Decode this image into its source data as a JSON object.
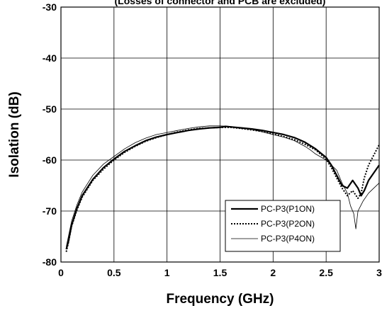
{
  "chart_data": {
    "type": "line",
    "title": "",
    "subtitle": "(Losses of connector and PCB are excluded)",
    "xlabel": "Frequency (GHz)",
    "ylabel": "Isolation (dB)",
    "xlim": [
      0,
      3
    ],
    "ylim": [
      -80,
      -30
    ],
    "x_ticks": [
      0,
      0.5,
      1,
      1.5,
      2,
      2.5,
      3
    ],
    "x_tick_labels": [
      "0",
      "0.5",
      "1",
      "1.5",
      "2",
      "2.5",
      "3"
    ],
    "y_ticks": [
      -80,
      -70,
      -60,
      -50,
      -40,
      -30
    ],
    "y_tick_labels": [
      "-80",
      "-70",
      "-60",
      "-50",
      "-40",
      "-30"
    ],
    "grid": true,
    "legend_position": "bottom-right",
    "series": [
      {
        "name": "PC-P3(P1ON)",
        "style": "solid-thick",
        "x": [
          0.05,
          0.07,
          0.1,
          0.15,
          0.2,
          0.3,
          0.4,
          0.5,
          0.6,
          0.7,
          0.8,
          0.9,
          1.0,
          1.1,
          1.2,
          1.3,
          1.4,
          1.5,
          1.55,
          1.6,
          1.7,
          1.8,
          1.9,
          2.0,
          2.1,
          2.2,
          2.3,
          2.4,
          2.5,
          2.55,
          2.6,
          2.65,
          2.7,
          2.75,
          2.8,
          2.83,
          2.86,
          2.9,
          2.95,
          3.0
        ],
        "y": [
          -77.5,
          -76.0,
          -72.8,
          -69.5,
          -67.0,
          -63.8,
          -61.5,
          -59.8,
          -58.3,
          -57.2,
          -56.2,
          -55.5,
          -55.0,
          -54.6,
          -54.2,
          -53.9,
          -53.7,
          -53.6,
          -53.4,
          -53.5,
          -53.7,
          -53.9,
          -54.2,
          -54.6,
          -55.0,
          -55.6,
          -56.5,
          -57.8,
          -59.5,
          -61.0,
          -63.0,
          -65.0,
          -65.5,
          -64.0,
          -65.5,
          -67.0,
          -66.0,
          -64.0,
          -62.5,
          -61.0
        ]
      },
      {
        "name": "PC-P3(P2ON)",
        "style": "dotted",
        "x": [
          0.05,
          0.07,
          0.1,
          0.15,
          0.2,
          0.3,
          0.4,
          0.5,
          0.6,
          0.7,
          0.8,
          0.9,
          1.0,
          1.1,
          1.2,
          1.3,
          1.4,
          1.5,
          1.6,
          1.7,
          1.8,
          1.9,
          2.0,
          2.1,
          2.2,
          2.3,
          2.4,
          2.5,
          2.55,
          2.6,
          2.65,
          2.7,
          2.75,
          2.8,
          2.83,
          2.86,
          2.9,
          2.95,
          3.0
        ],
        "y": [
          -78.0,
          -76.2,
          -73.0,
          -69.8,
          -67.3,
          -64.0,
          -61.8,
          -60.0,
          -58.5,
          -57.3,
          -56.3,
          -55.6,
          -55.0,
          -54.5,
          -54.1,
          -53.8,
          -53.7,
          -53.6,
          -53.6,
          -53.8,
          -54.1,
          -54.4,
          -54.9,
          -55.4,
          -56.0,
          -56.9,
          -58.0,
          -59.8,
          -61.5,
          -63.5,
          -65.5,
          -67.0,
          -66.0,
          -67.5,
          -66.5,
          -63.5,
          -61.0,
          -59.0,
          -57.0
        ]
      },
      {
        "name": "PC-P3(P4ON)",
        "style": "thin",
        "x": [
          0.05,
          0.07,
          0.1,
          0.15,
          0.2,
          0.3,
          0.4,
          0.5,
          0.6,
          0.7,
          0.8,
          0.9,
          1.0,
          1.1,
          1.2,
          1.3,
          1.4,
          1.5,
          1.6,
          1.7,
          1.8,
          1.9,
          2.0,
          2.1,
          2.2,
          2.3,
          2.35,
          2.4,
          2.5,
          2.6,
          2.65,
          2.7,
          2.73,
          2.76,
          2.78,
          2.8,
          2.85,
          2.9,
          2.95,
          3.0
        ],
        "y": [
          -77.0,
          -75.0,
          -72.0,
          -68.8,
          -66.3,
          -63.0,
          -60.8,
          -59.3,
          -57.8,
          -56.6,
          -55.7,
          -55.0,
          -54.6,
          -54.2,
          -53.8,
          -53.5,
          -53.3,
          -53.3,
          -53.4,
          -53.8,
          -54.0,
          -54.5,
          -55.0,
          -55.5,
          -56.2,
          -57.3,
          -58.0,
          -58.8,
          -60.0,
          -62.0,
          -64.5,
          -66.5,
          -69.0,
          -70.5,
          -73.5,
          -70.0,
          -68.0,
          -66.5,
          -65.5,
          -64.5
        ]
      }
    ]
  }
}
